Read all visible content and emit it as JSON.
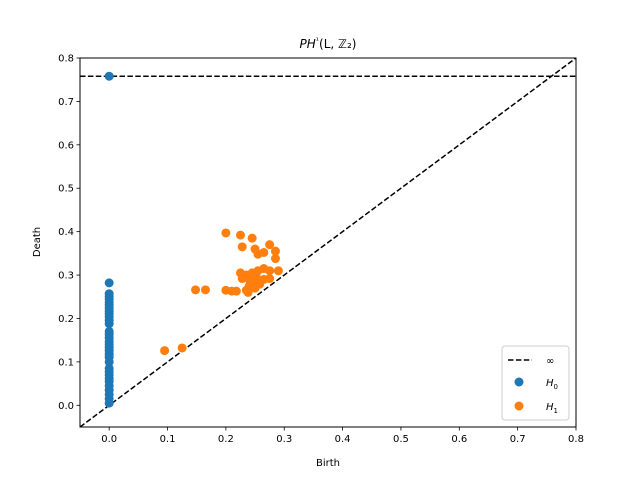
{
  "chart_data": {
    "type": "scatter",
    "title": "PH¹(L, ℤ₂)",
    "xlabel": "Birth",
    "ylabel": "Death",
    "xlim": [
      -0.05,
      0.8
    ],
    "ylim": [
      -0.05,
      0.8
    ],
    "xticks": [
      "0.0",
      "0.1",
      "0.2",
      "0.3",
      "0.4",
      "0.5",
      "0.6",
      "0.7",
      "0.8"
    ],
    "yticks": [
      "0.0",
      "0.1",
      "0.2",
      "0.3",
      "0.4",
      "0.5",
      "0.6",
      "0.7",
      "0.8"
    ],
    "grid": false,
    "legend_position": "lower-right",
    "infinity_line": {
      "name": "∞",
      "y": 0.758
    },
    "diagonal": true,
    "series": [
      {
        "name": "H0",
        "color": "#1f77b4",
        "points": [
          [
            0,
            0.758
          ],
          [
            0,
            0.282
          ],
          [
            0,
            0.257
          ],
          [
            0,
            0.251
          ],
          [
            0,
            0.245
          ],
          [
            0,
            0.238
          ],
          [
            0,
            0.231
          ],
          [
            0,
            0.224
          ],
          [
            0,
            0.217
          ],
          [
            0,
            0.211
          ],
          [
            0,
            0.204
          ],
          [
            0,
            0.196
          ],
          [
            0,
            0.188
          ],
          [
            0,
            0.17
          ],
          [
            0,
            0.163
          ],
          [
            0,
            0.155
          ],
          [
            0,
            0.147
          ],
          [
            0,
            0.14
          ],
          [
            0,
            0.133
          ],
          [
            0,
            0.126
          ],
          [
            0,
            0.118
          ],
          [
            0,
            0.111
          ],
          [
            0,
            0.1
          ],
          [
            0,
            0.085
          ],
          [
            0,
            0.077
          ],
          [
            0,
            0.07
          ],
          [
            0,
            0.062
          ],
          [
            0,
            0.055
          ],
          [
            0,
            0.045
          ],
          [
            0,
            0.035
          ],
          [
            0,
            0.025
          ],
          [
            0,
            0.015
          ],
          [
            0,
            0.005
          ]
        ]
      },
      {
        "name": "H1",
        "color": "#ff7f0e",
        "points": [
          [
            0.095,
            0.126
          ],
          [
            0.125,
            0.132
          ],
          [
            0.148,
            0.266
          ],
          [
            0.165,
            0.266
          ],
          [
            0.2,
            0.397
          ],
          [
            0.2,
            0.265
          ],
          [
            0.21,
            0.263
          ],
          [
            0.218,
            0.263
          ],
          [
            0.225,
            0.392
          ],
          [
            0.228,
            0.365
          ],
          [
            0.245,
            0.385
          ],
          [
            0.25,
            0.36
          ],
          [
            0.255,
            0.348
          ],
          [
            0.265,
            0.352
          ],
          [
            0.275,
            0.37
          ],
          [
            0.285,
            0.355
          ],
          [
            0.285,
            0.338
          ],
          [
            0.265,
            0.315
          ],
          [
            0.255,
            0.31
          ],
          [
            0.275,
            0.31
          ],
          [
            0.29,
            0.31
          ],
          [
            0.225,
            0.305
          ],
          [
            0.235,
            0.3
          ],
          [
            0.228,
            0.292
          ],
          [
            0.24,
            0.29
          ],
          [
            0.245,
            0.305
          ],
          [
            0.252,
            0.296
          ],
          [
            0.265,
            0.29
          ],
          [
            0.275,
            0.292
          ],
          [
            0.25,
            0.283
          ],
          [
            0.258,
            0.279
          ],
          [
            0.24,
            0.275
          ],
          [
            0.25,
            0.27
          ],
          [
            0.235,
            0.265
          ],
          [
            0.238,
            0.26
          ]
        ]
      }
    ]
  }
}
